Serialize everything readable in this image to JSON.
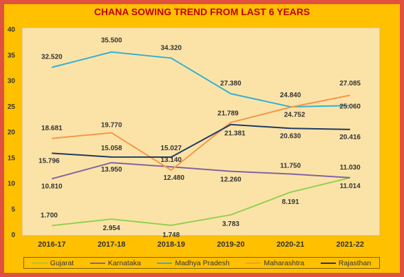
{
  "chart_data": {
    "type": "line",
    "title": "CHANA SOWING TREND FROM LAST 6 YEARS",
    "xlabel": "",
    "ylabel": "",
    "categories": [
      "2016-17",
      "2017-18",
      "2018-19",
      "2019-20",
      "2020-21",
      "2021-22"
    ],
    "ylim": [
      0,
      40
    ],
    "yticks": [
      "0",
      "5",
      "10",
      "15",
      "20",
      "25",
      "30",
      "35",
      "40"
    ],
    "grid": false,
    "legend_position": "bottom",
    "series": [
      {
        "name": "Gujarat",
        "color": "#92d050",
        "values": [
          1.7,
          2.954,
          1.748,
          3.783,
          8.191,
          11.014
        ],
        "labels": [
          "1.700",
          "2.954",
          "1.748",
          "3.783",
          "8.191",
          "11.014"
        ]
      },
      {
        "name": "Karnataka",
        "color": "#8064a2",
        "values": [
          10.81,
          13.95,
          13.14,
          12.26,
          11.75,
          11.03
        ],
        "labels": [
          "10.810",
          "13.950",
          "13.140",
          "12.260",
          "11.750",
          "11.030"
        ]
      },
      {
        "name": "Madhya Pradesh",
        "color": "#31b0d5",
        "values": [
          32.52,
          35.5,
          34.32,
          27.38,
          24.84,
          25.06
        ],
        "labels": [
          "32.520",
          "35.500",
          "34.320",
          "27.380",
          "24.840",
          "25.060"
        ]
      },
      {
        "name": "Maharashtra",
        "color": "#f79646",
        "values": [
          18.681,
          19.77,
          12.48,
          21.789,
          24.752,
          27.085
        ],
        "labels": [
          "18.681",
          "19.770",
          "12.480",
          "21.789",
          "24.752",
          "27.085"
        ]
      },
      {
        "name": "Rajasthan",
        "color": "#1f3864",
        "values": [
          15.796,
          15.058,
          15.027,
          21.381,
          20.63,
          20.416
        ],
        "labels": [
          "15.796",
          "15.058",
          "15.027",
          "21.381",
          "20.630",
          "20.416"
        ]
      }
    ]
  }
}
